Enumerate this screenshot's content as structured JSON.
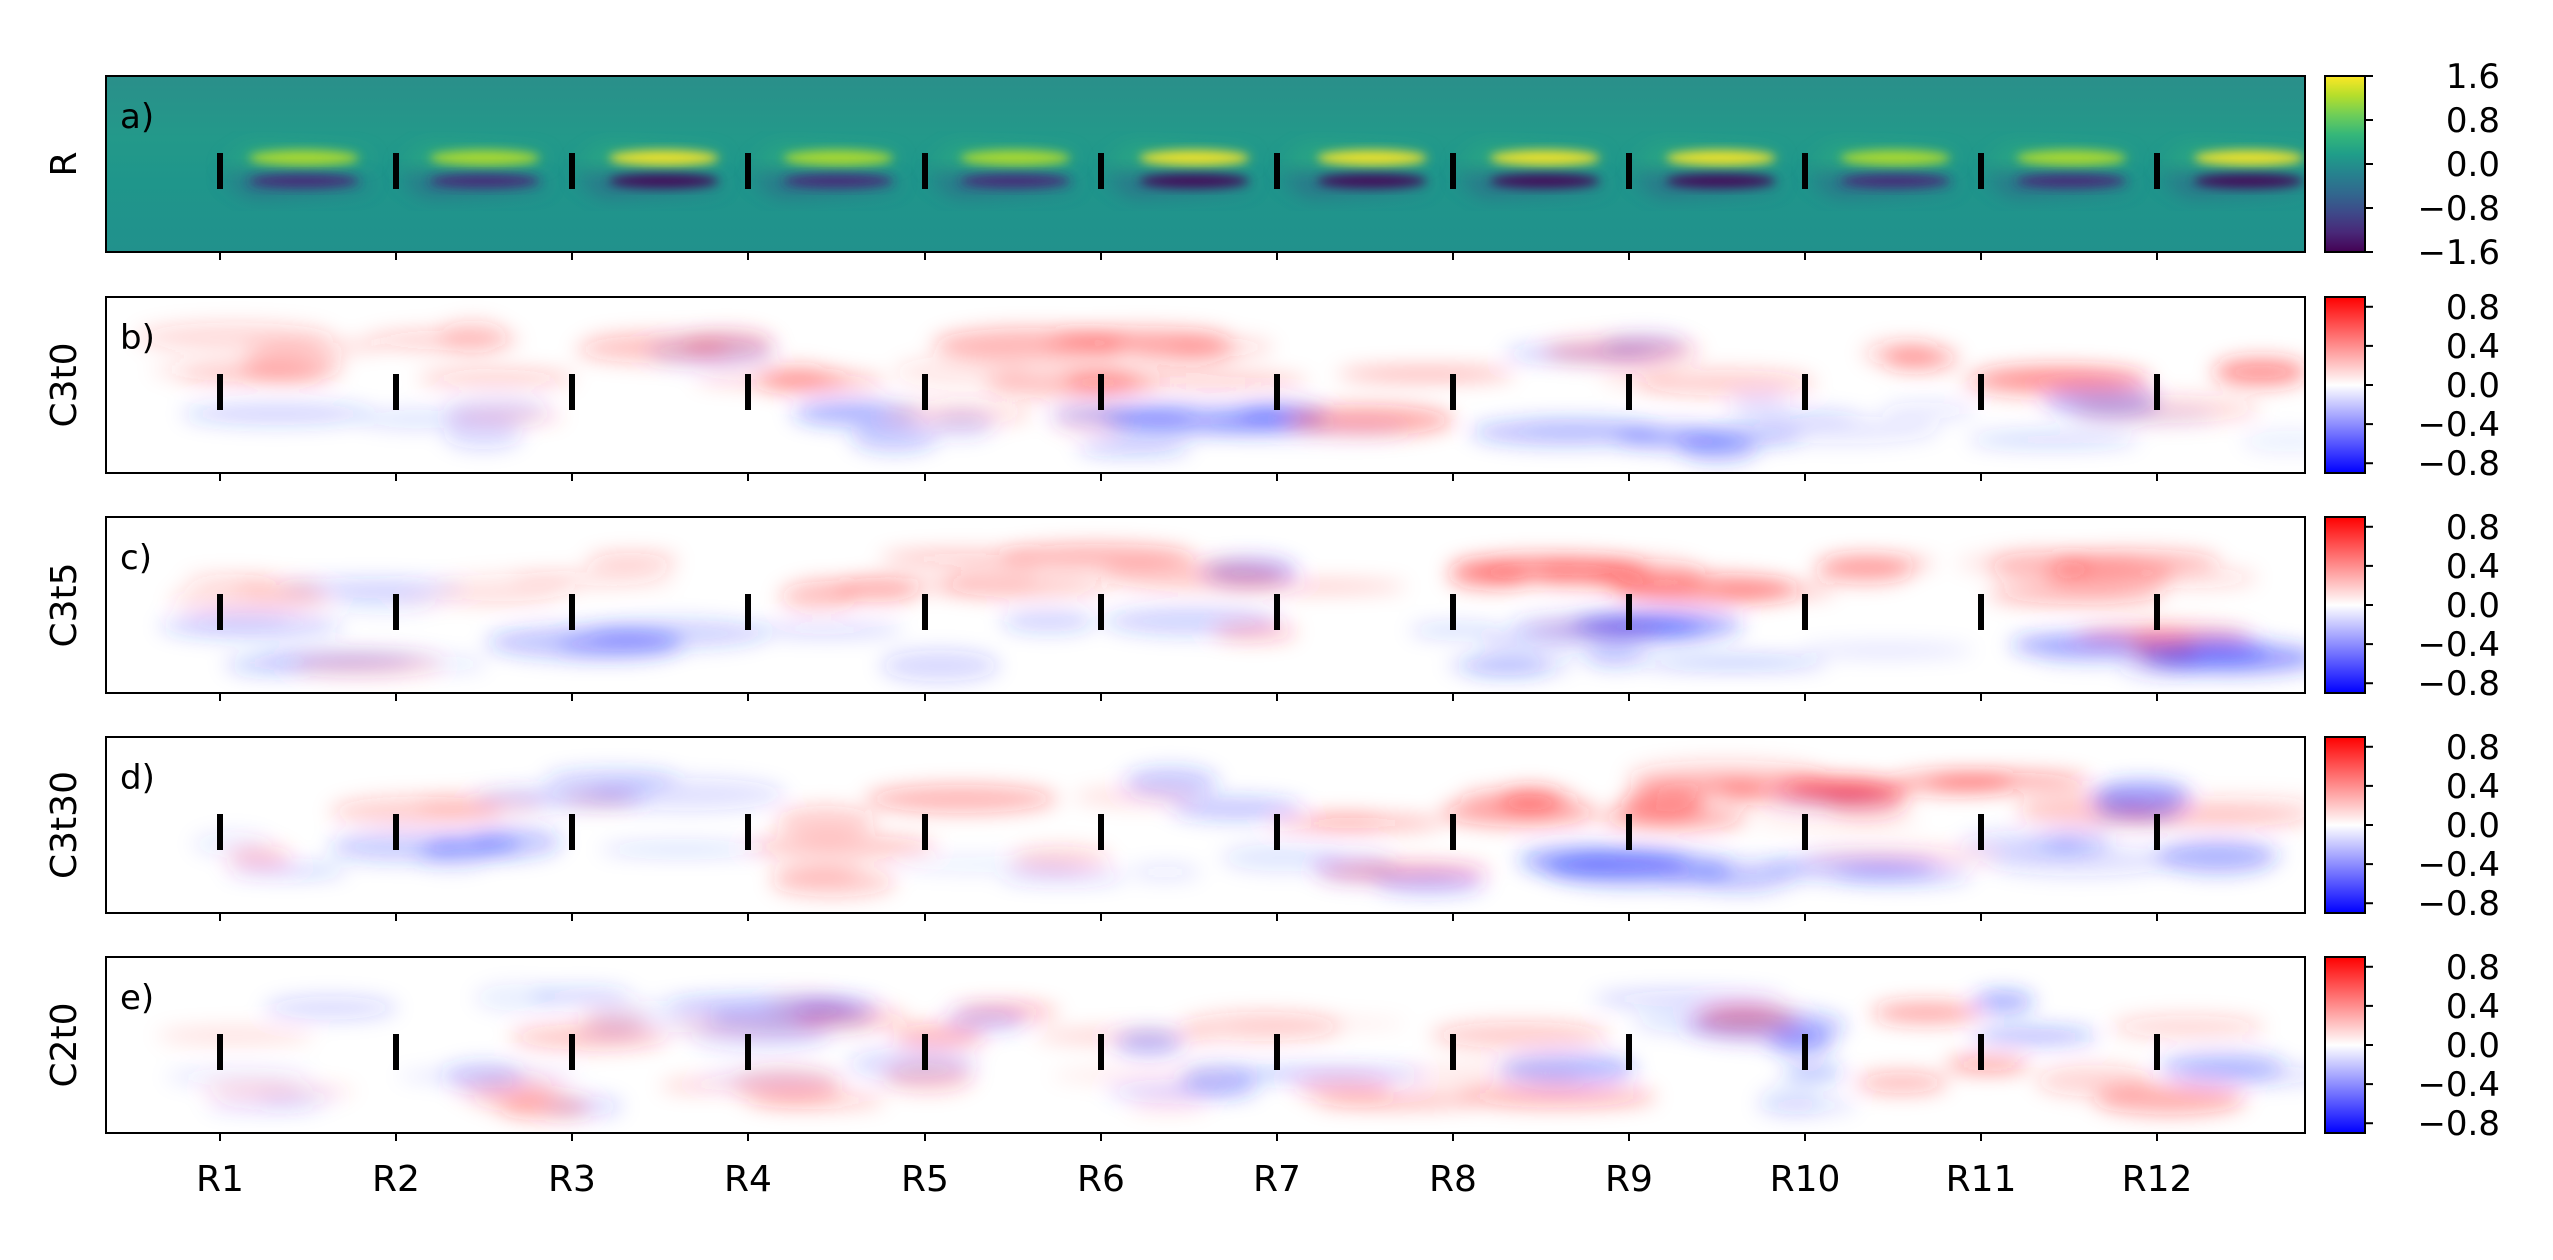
{
  "chart_data": {
    "type": "heatmap",
    "x_ticks": [
      "R1",
      "R2",
      "R3",
      "R4",
      "R5",
      "R6",
      "R7",
      "R8",
      "R9",
      "R10",
      "R11",
      "R12"
    ],
    "panels": [
      {
        "panel_label": "a)",
        "ylabel": "R",
        "colormap": "viridis",
        "clim": [
          -1.6,
          1.6
        ],
        "colorbar_ticks": [
          "1.6",
          "0.8",
          "0.0",
          "−0.8",
          "−1.6"
        ],
        "colorbar_values": [
          1.6,
          0.8,
          0.0,
          -0.8,
          -1.6
        ],
        "wake_peak_values": [
          0.9,
          1.2,
          1.4,
          1.3,
          1.3,
          1.5,
          1.6,
          1.4,
          1.4,
          1.3,
          1.3,
          1.4
        ]
      },
      {
        "panel_label": "b)",
        "ylabel": "C3t0",
        "colormap": "bwr",
        "clim": [
          -0.9,
          0.9
        ],
        "colorbar_ticks": [
          "0.8",
          "0.4",
          "0.0",
          "−0.4",
          "−0.8"
        ],
        "colorbar_values": [
          0.8,
          0.4,
          0.0,
          -0.4,
          -0.8
        ]
      },
      {
        "panel_label": "c)",
        "ylabel": "C3t5",
        "colormap": "bwr",
        "clim": [
          -0.9,
          0.9
        ],
        "colorbar_ticks": [
          "0.8",
          "0.4",
          "0.0",
          "−0.4",
          "−0.8"
        ],
        "colorbar_values": [
          0.8,
          0.4,
          0.0,
          -0.4,
          -0.8
        ]
      },
      {
        "panel_label": "d)",
        "ylabel": "C3t30",
        "colormap": "bwr",
        "clim": [
          -0.9,
          0.9
        ],
        "colorbar_ticks": [
          "0.8",
          "0.4",
          "0.0",
          "−0.4",
          "−0.8"
        ],
        "colorbar_values": [
          0.8,
          0.4,
          0.0,
          -0.4,
          -0.8
        ]
      },
      {
        "panel_label": "e)",
        "ylabel": "C2t0",
        "colormap": "bwr",
        "clim": [
          -0.9,
          0.9
        ],
        "colorbar_ticks": [
          "0.8",
          "0.4",
          "0.0",
          "−0.4",
          "−0.8"
        ],
        "colorbar_values": [
          0.8,
          0.4,
          0.0,
          -0.4,
          -0.8
        ]
      }
    ]
  }
}
